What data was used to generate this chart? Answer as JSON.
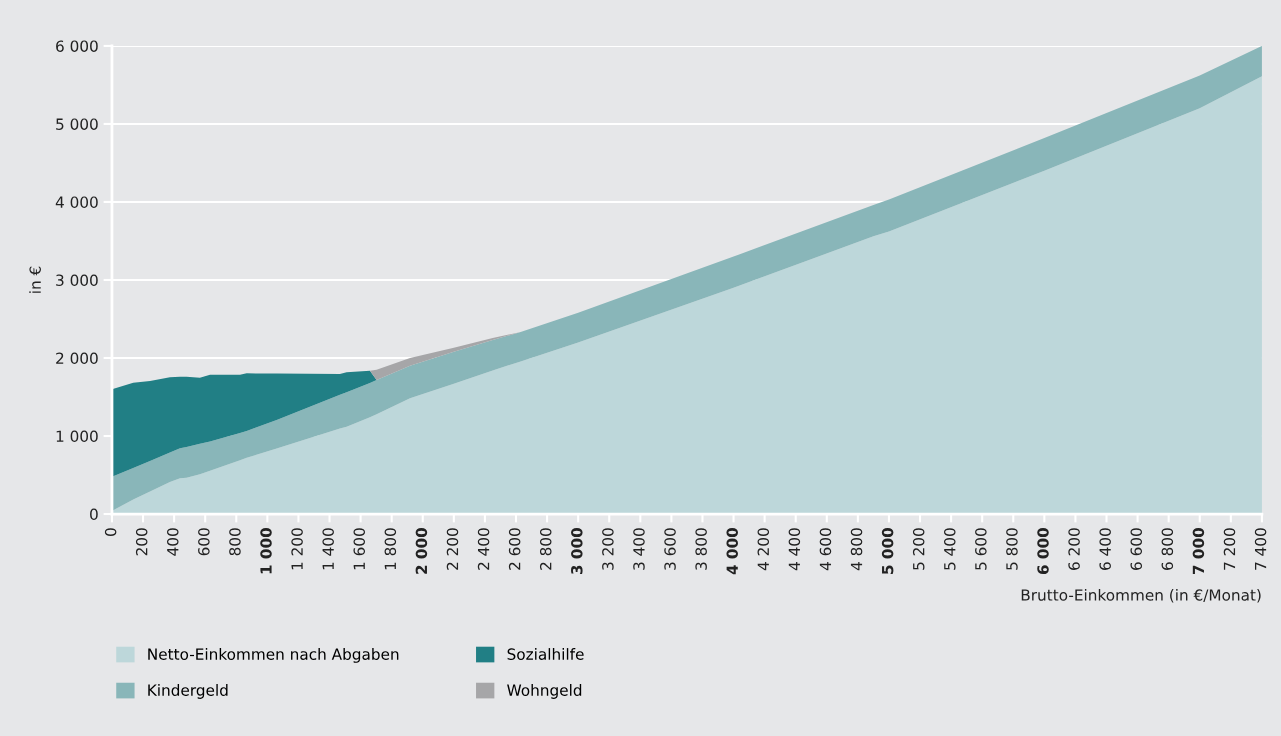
{
  "chart_data": {
    "type": "area",
    "stacked": true,
    "xlabel": "Brutto-Einkommen (in €/Monat)",
    "ylabel": "in €",
    "x": [
      0,
      137,
      245,
      373,
      438,
      480,
      566,
      631,
      824,
      867,
      1060,
      1467,
      1510,
      1660,
      1703,
      1918,
      2200,
      2450,
      2625,
      3000,
      4000,
      4900,
      5000,
      6000,
      7000,
      7400
    ],
    "series": [
      {
        "name": "Netto-Einkommen nach Abgaben",
        "color": "#bdd7da",
        "values": [
          40,
          185,
          290,
          410,
          457,
          465,
          510,
          555,
          690,
          720,
          840,
          1095,
          1120,
          1240,
          1280,
          1483,
          1670,
          1840,
          1953,
          2200,
          2900,
          3560,
          3620,
          4400,
          5200,
          5610
        ]
      },
      {
        "name": "Kindergeld",
        "color": "#89b6b9",
        "values": [
          438,
          405,
          390,
          380,
          385,
          395,
          390,
          375,
          350,
          345,
          365,
          435,
          440,
          440,
          438,
          417,
          410,
          390,
          377,
          380,
          400,
          400,
          410,
          420,
          420,
          390
        ]
      },
      {
        "name": "Sozialhilfe",
        "color": "#217f85",
        "values": [
          1122,
          1093,
          1025,
          962,
          916,
          901,
          848,
          856,
          746,
          738,
          595,
          265,
          256,
          158,
          0,
          0,
          0,
          0,
          0,
          0,
          0,
          0,
          0,
          0,
          0,
          0
        ]
      },
      {
        "name": "Wohngeld",
        "color": "#a6a6a8",
        "values": [
          0,
          0,
          0,
          0,
          0,
          0,
          0,
          0,
          0,
          0,
          0,
          0,
          0,
          0,
          132,
          100,
          50,
          26,
          0,
          0,
          0,
          0,
          0,
          0,
          0,
          0
        ]
      }
    ],
    "xlim": [
      0,
      7400
    ],
    "xticks": [
      0,
      200,
      400,
      600,
      800,
      {
        "value": 1000,
        "label": "1 000"
      },
      {
        "value": 1200,
        "label": "1 200"
      },
      {
        "value": 1400,
        "label": "1 400"
      },
      {
        "value": 1600,
        "label": "1 600"
      },
      {
        "value": 1800,
        "label": "1 800"
      },
      {
        "value": 2000,
        "label": "2 000"
      },
      {
        "value": 2200,
        "label": "2 200"
      },
      {
        "value": 2400,
        "label": "2 400"
      },
      {
        "value": 2600,
        "label": "2 600"
      },
      {
        "value": 2800,
        "label": "2 800"
      },
      {
        "value": 3000,
        "label": "3 000"
      },
      {
        "value": 3200,
        "label": "3 200"
      },
      {
        "value": 3400,
        "label": "3 400"
      },
      {
        "value": 3600,
        "label": "3 600"
      },
      {
        "value": 3800,
        "label": "3 800"
      },
      {
        "value": 4000,
        "label": "4 000"
      },
      {
        "value": 4200,
        "label": "4 200"
      },
      {
        "value": 4400,
        "label": "4 400"
      },
      {
        "value": 4600,
        "label": "4 600"
      },
      {
        "value": 4800,
        "label": "4 800"
      },
      {
        "value": 5000,
        "label": "5 000"
      },
      {
        "value": 5200,
        "label": "5 200"
      },
      {
        "value": 5400,
        "label": "5 400"
      },
      {
        "value": 5600,
        "label": "5 600"
      },
      {
        "value": 5800,
        "label": "5 800"
      },
      {
        "value": 6000,
        "label": "6 000"
      },
      {
        "value": 6200,
        "label": "6 200"
      },
      {
        "value": 6400,
        "label": "6 400"
      },
      {
        "value": 6600,
        "label": "6 600"
      },
      {
        "value": 6800,
        "label": "6 800"
      },
      {
        "value": 7000,
        "label": "7 000"
      },
      {
        "value": 7200,
        "label": "7 200"
      },
      {
        "value": 7400,
        "label": "7 400"
      }
    ],
    "ylim": [
      0,
      6000
    ],
    "yticks": [
      0,
      {
        "value": 1000,
        "label": "1 000"
      },
      {
        "value": 2000,
        "label": "2 000"
      },
      {
        "value": 3000,
        "label": "3 000"
      },
      {
        "value": 4000,
        "label": "4 000"
      },
      {
        "value": 5000,
        "label": "5 000"
      },
      {
        "value": 6000,
        "label": "6 000"
      }
    ],
    "grid": "y",
    "legend": "bottom"
  }
}
